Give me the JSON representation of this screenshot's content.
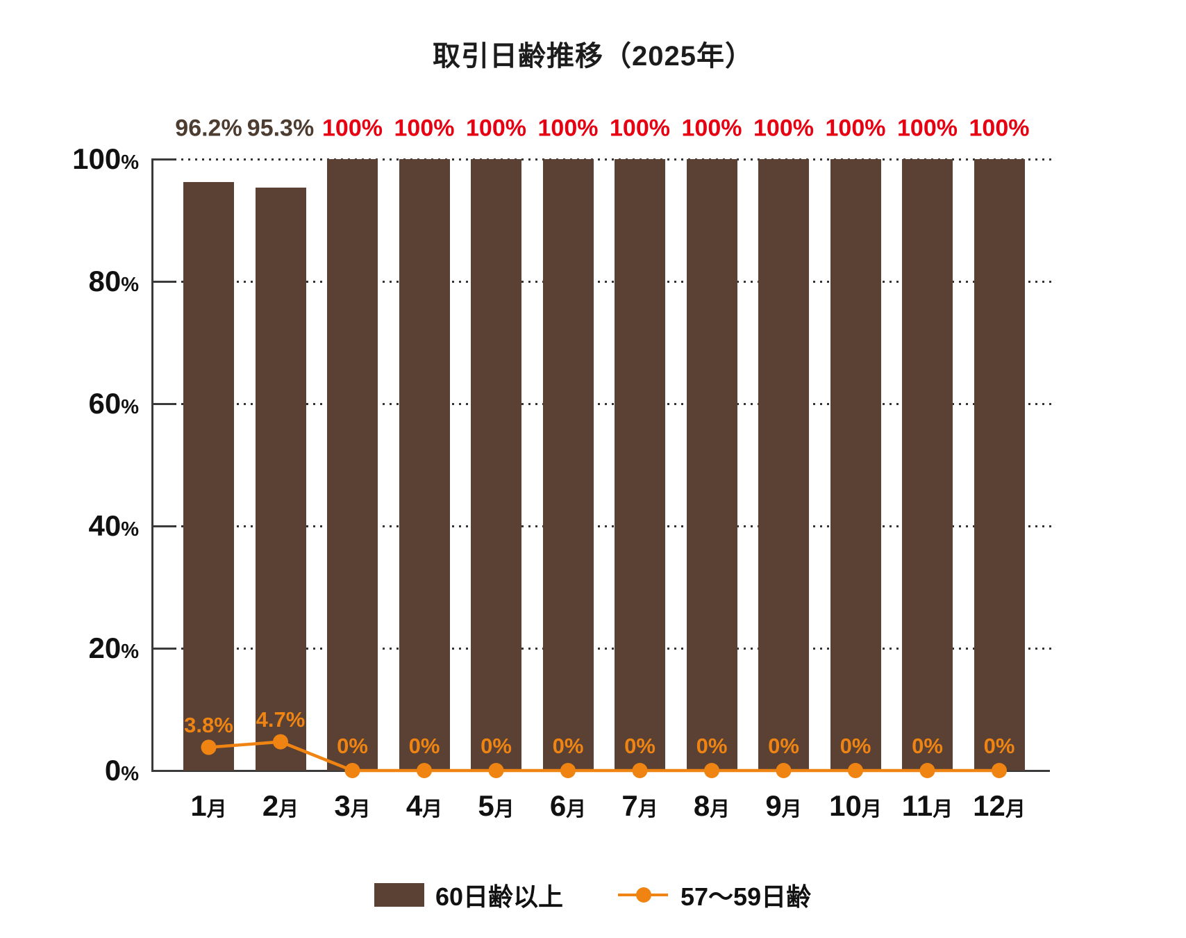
{
  "title": "取引日齢推移（2025年）",
  "colors": {
    "bar": "#5a4134",
    "line": "#ef8412",
    "bar_label_normal": "#4d3c30",
    "bar_label_highlight": "#e60012",
    "axis": "#3a3a3a",
    "title_text": "#1c1c1c"
  },
  "chart_data": {
    "type": "bar",
    "combo": "bar+line",
    "title": "取引日齢推移（2025年）",
    "categories": [
      "1月",
      "2月",
      "3月",
      "4月",
      "5月",
      "6月",
      "7月",
      "8月",
      "9月",
      "10月",
      "11月",
      "12月"
    ],
    "series": [
      {
        "name": "60日齢以上",
        "type": "bar",
        "values": [
          96.2,
          95.3,
          100,
          100,
          100,
          100,
          100,
          100,
          100,
          100,
          100,
          100
        ],
        "labels": [
          "96.2%",
          "95.3%",
          "100%",
          "100%",
          "100%",
          "100%",
          "100%",
          "100%",
          "100%",
          "100%",
          "100%",
          " 100%"
        ]
      },
      {
        "name": "57〜59日齢",
        "type": "line",
        "values": [
          3.8,
          4.7,
          0,
          0,
          0,
          0,
          0,
          0,
          0,
          0,
          0,
          0
        ],
        "labels": [
          "3.8%",
          "4.7%",
          "0%",
          "0%",
          "0%",
          "0%",
          "0%",
          "0%",
          "0%",
          "0%",
          "0%",
          "0%"
        ]
      }
    ],
    "y_axis": {
      "min": 0,
      "max": 100,
      "tick_values": [
        100,
        80,
        60,
        40,
        20,
        0
      ],
      "tick_labels": [
        "100",
        "80",
        "60",
        "40",
        "20",
        "0"
      ],
      "unit": "%"
    },
    "x_axis": {
      "suffix": "月"
    },
    "grid": "dotted horizontal",
    "legend_position": "bottom",
    "legend": [
      "60日齢以上",
      "57〜59日齢"
    ]
  }
}
